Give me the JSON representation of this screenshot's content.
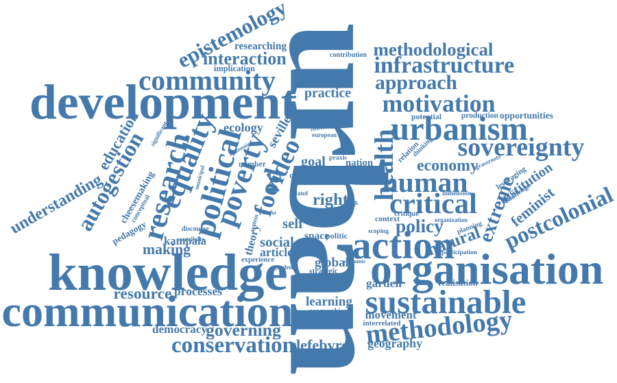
{
  "colors": {
    "word": "#4479ab",
    "background": "#ffffff"
  },
  "words": [
    {
      "text": "urban"
    },
    {
      "text": "knowledge"
    },
    {
      "text": "communication"
    },
    {
      "text": "development"
    },
    {
      "text": "organisation"
    },
    {
      "text": "sustainable"
    },
    {
      "text": "action"
    },
    {
      "text": "community"
    },
    {
      "text": "urbanism"
    },
    {
      "text": "human"
    },
    {
      "text": "sovereignty"
    },
    {
      "text": "critical"
    },
    {
      "text": "motivation"
    },
    {
      "text": "infrastructure"
    },
    {
      "text": "approach"
    },
    {
      "text": "methodological"
    },
    {
      "text": "methodology"
    },
    {
      "text": "conservation"
    },
    {
      "text": "postcolonial"
    },
    {
      "text": "epistemology"
    },
    {
      "text": "interaction"
    },
    {
      "text": "policy"
    },
    {
      "text": "economy"
    },
    {
      "text": "research"
    },
    {
      "text": "equality"
    },
    {
      "text": "political"
    },
    {
      "text": "poverty"
    },
    {
      "text": "food"
    },
    {
      "text": "video"
    },
    {
      "text": "health"
    },
    {
      "text": "extreme"
    },
    {
      "text": "autogestion"
    },
    {
      "text": "education"
    },
    {
      "text": "understanding"
    },
    {
      "text": "institution"
    },
    {
      "text": "feminist"
    },
    {
      "text": "natural"
    },
    {
      "text": "practice"
    },
    {
      "text": "governing"
    },
    {
      "text": "democracy"
    },
    {
      "text": "resource"
    },
    {
      "text": "processes"
    },
    {
      "text": "making"
    },
    {
      "text": "kampala"
    },
    {
      "text": "learning"
    },
    {
      "text": "geographical"
    },
    {
      "text": "movement"
    },
    {
      "text": "interrelated"
    },
    {
      "text": "geography"
    },
    {
      "text": "lefebvre"
    },
    {
      "text": "global"
    },
    {
      "text": "strategic"
    },
    {
      "text": "social"
    },
    {
      "text": "article"
    },
    {
      "text": "experience"
    },
    {
      "text": "theory"
    },
    {
      "text": "right"
    },
    {
      "text": "ecology"
    },
    {
      "text": "seville"
    },
    {
      "text": "goal"
    },
    {
      "text": "nation"
    },
    {
      "text": "garden"
    },
    {
      "text": "realisation"
    },
    {
      "text": "participation"
    },
    {
      "text": "opportunities"
    },
    {
      "text": "production"
    },
    {
      "text": "potential"
    },
    {
      "text": "researching"
    },
    {
      "text": "implication"
    },
    {
      "text": "contribution"
    },
    {
      "text": "cheesemaking"
    },
    {
      "text": "conceptual"
    },
    {
      "text": "pedagogy"
    },
    {
      "text": "discourse"
    },
    {
      "text": "contribute"
    },
    {
      "text": "space"
    },
    {
      "text": "politic"
    },
    {
      "text": "self"
    },
    {
      "text": "number"
    },
    {
      "text": "city"
    },
    {
      "text": "land"
    },
    {
      "text": "critique"
    },
    {
      "text": "dimension"
    },
    {
      "text": "organization"
    },
    {
      "text": "planning"
    },
    {
      "text": "leveraging"
    },
    {
      "text": "challenge"
    },
    {
      "text": "grassroots"
    },
    {
      "text": "relation"
    },
    {
      "text": "thinking"
    },
    {
      "text": "context"
    },
    {
      "text": "scoping"
    },
    {
      "text": "examine"
    },
    {
      "text": "gardener"
    },
    {
      "text": "dynamic"
    },
    {
      "text": "significant"
    },
    {
      "text": "epistemic"
    },
    {
      "text": "municipal"
    },
    {
      "text": "european"
    },
    {
      "text": "reflection"
    },
    {
      "text": "praxis"
    },
    {
      "text": "paper"
    },
    {
      "text": "sector"
    },
    {
      "text": "group"
    },
    {
      "text": "lima"
    },
    {
      "text": "current"
    },
    {
      "text": "system"
    }
  ]
}
